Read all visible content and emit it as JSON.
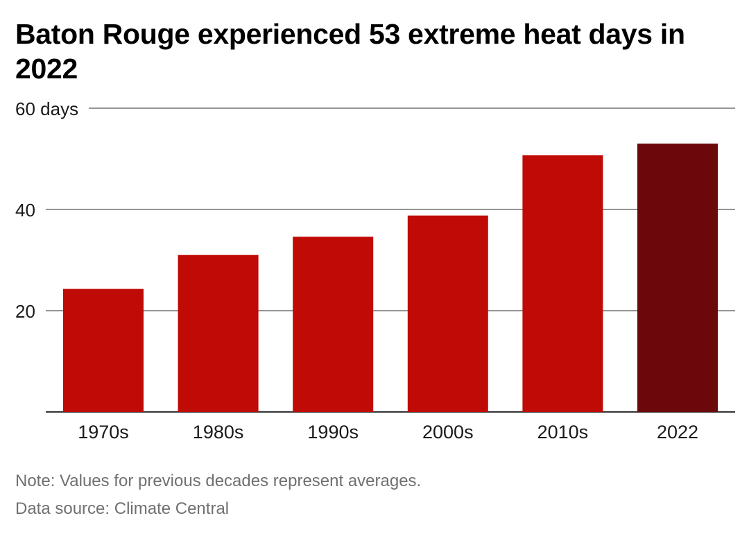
{
  "header": {
    "title": "Baton Rouge experienced 53 extreme heat days in 2022"
  },
  "chart_data": {
    "type": "bar",
    "categories": [
      "1970s",
      "1980s",
      "1990s",
      "2000s",
      "2010s",
      "2022"
    ],
    "values": [
      24.3,
      31,
      34.6,
      38.8,
      50.7,
      53
    ],
    "ylim": [
      0,
      60
    ],
    "y_ticks": [
      {
        "value": 20,
        "label": "20"
      },
      {
        "value": 40,
        "label": "40"
      },
      {
        "value": 60,
        "label": "60 days"
      }
    ],
    "grid": true,
    "colors": {
      "default": "#c00a05",
      "highlight": "#6b080c"
    },
    "highlight_category": "2022"
  },
  "footer": {
    "note": "Note: Values for previous decades represent averages.",
    "source": "Data source: Climate Central"
  }
}
